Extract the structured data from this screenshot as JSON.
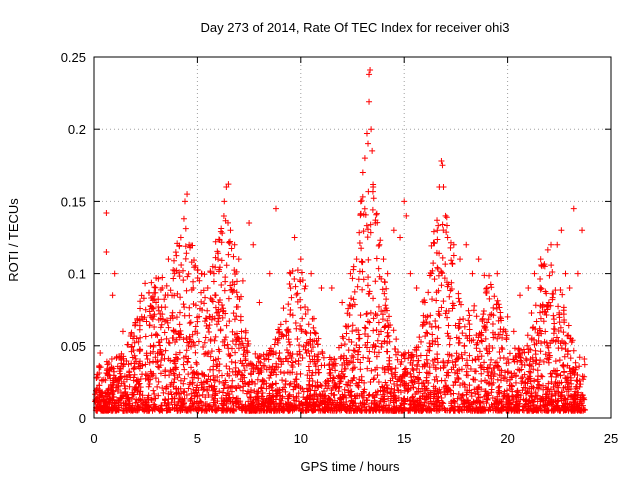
{
  "chart_data": {
    "type": "scatter",
    "title": "Day 273 of 2014, Rate Of TEC Index for receiver ohi3",
    "xlabel": "GPS time / hours",
    "ylabel": "ROTI / TECUs",
    "xlim": [
      0,
      25
    ],
    "ylim": [
      0,
      0.25
    ],
    "xticks": [
      0,
      5,
      10,
      15,
      20,
      25
    ],
    "yticks": [
      0,
      0.05,
      0.1,
      0.15,
      0.2,
      0.25
    ],
    "xtick_labels": [
      "0",
      "5",
      "10",
      "15",
      "20",
      "25"
    ],
    "ytick_labels": [
      "0",
      "0.05",
      "0.1",
      "0.15",
      "0.2",
      "0.25"
    ],
    "grid": true,
    "marker": "+",
    "marker_color": "#ff0000",
    "series": [
      {
        "name": "ROTI",
        "points": [
          [
            0.3,
            0.045
          ],
          [
            0.6,
            0.115
          ],
          [
            0.6,
            0.142
          ],
          [
            0.9,
            0.085
          ],
          [
            1.0,
            0.1
          ],
          [
            1.4,
            0.06
          ],
          [
            2.0,
            0.065
          ],
          [
            2.5,
            0.075
          ],
          [
            3.0,
            0.08
          ],
          [
            3.3,
            0.09
          ],
          [
            3.6,
            0.11
          ],
          [
            3.9,
            0.1
          ],
          [
            4.2,
            0.125
          ],
          [
            4.35,
            0.138
          ],
          [
            4.4,
            0.15
          ],
          [
            4.5,
            0.155
          ],
          [
            4.6,
            0.12
          ],
          [
            4.8,
            0.09
          ],
          [
            5.2,
            0.1
          ],
          [
            5.5,
            0.09
          ],
          [
            5.8,
            0.1
          ],
          [
            6.0,
            0.11
          ],
          [
            6.2,
            0.128
          ],
          [
            6.3,
            0.15
          ],
          [
            6.4,
            0.16
          ],
          [
            6.5,
            0.162
          ],
          [
            6.6,
            0.13
          ],
          [
            6.8,
            0.12
          ],
          [
            7.0,
            0.11
          ],
          [
            7.2,
            0.095
          ],
          [
            7.5,
            0.135
          ],
          [
            7.7,
            0.12
          ],
          [
            8.0,
            0.08
          ],
          [
            8.5,
            0.1
          ],
          [
            8.8,
            0.145
          ],
          [
            9.5,
            0.1
          ],
          [
            9.7,
            0.125
          ],
          [
            10.0,
            0.11
          ],
          [
            10.5,
            0.1
          ],
          [
            11.0,
            0.09
          ],
          [
            11.5,
            0.09
          ],
          [
            12.0,
            0.08
          ],
          [
            12.4,
            0.1
          ],
          [
            12.7,
            0.11
          ],
          [
            12.9,
            0.15
          ],
          [
            13.0,
            0.17
          ],
          [
            13.1,
            0.18
          ],
          [
            13.2,
            0.197
          ],
          [
            13.25,
            0.19
          ],
          [
            13.3,
            0.238
          ],
          [
            13.35,
            0.241
          ],
          [
            13.3,
            0.219
          ],
          [
            13.4,
            0.2
          ],
          [
            13.45,
            0.185
          ],
          [
            13.5,
            0.16
          ],
          [
            13.6,
            0.135
          ],
          [
            13.8,
            0.12
          ],
          [
            14.0,
            0.11
          ],
          [
            14.2,
            0.1
          ],
          [
            14.5,
            0.13
          ],
          [
            14.8,
            0.125
          ],
          [
            15.0,
            0.15
          ],
          [
            15.1,
            0.14
          ],
          [
            15.3,
            0.1
          ],
          [
            15.6,
            0.09
          ],
          [
            16.0,
            0.08
          ],
          [
            16.3,
            0.1
          ],
          [
            16.6,
            0.13
          ],
          [
            16.7,
            0.16
          ],
          [
            16.8,
            0.178
          ],
          [
            16.85,
            0.175
          ],
          [
            16.9,
            0.16
          ],
          [
            17.0,
            0.14
          ],
          [
            17.1,
            0.125
          ],
          [
            17.4,
            0.12
          ],
          [
            17.7,
            0.11
          ],
          [
            18.0,
            0.12
          ],
          [
            18.3,
            0.1
          ],
          [
            18.6,
            0.11
          ],
          [
            19.0,
            0.09
          ],
          [
            19.5,
            0.1
          ],
          [
            20.0,
            0.07
          ],
          [
            20.3,
            0.06
          ],
          [
            20.6,
            0.085
          ],
          [
            21.0,
            0.09
          ],
          [
            21.3,
            0.1
          ],
          [
            21.6,
            0.11
          ],
          [
            21.8,
            0.105
          ],
          [
            22.1,
            0.12
          ],
          [
            22.4,
            0.12
          ],
          [
            22.6,
            0.13
          ],
          [
            22.8,
            0.1
          ],
          [
            23.0,
            0.09
          ],
          [
            23.2,
            0.145
          ],
          [
            23.4,
            0.1
          ],
          [
            23.6,
            0.13
          ]
        ]
      }
    ]
  }
}
